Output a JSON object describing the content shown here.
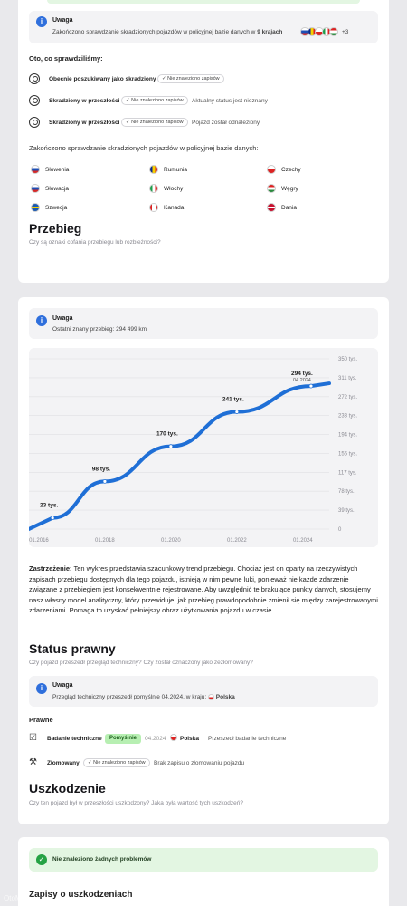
{
  "theft_notice": {
    "title": "Uwaga",
    "text_before": "Zakończono sprawdzanie skradzionych pojazdów w policyjnej bazie danych w",
    "count_label": "9 krajach",
    "more": "+3"
  },
  "checked_heading": "Oto, co sprawdziliśmy:",
  "checks": [
    {
      "icon": "thief-icon",
      "label": "Obecnie poszukiwany jako skradziony",
      "chip": "Nie znaleziono zapisów",
      "note": ""
    },
    {
      "icon": "thief-icon",
      "label": "Skradziony w przeszłości",
      "chip": "Nie znaleziono zapisów",
      "note": "Aktualny status jest nieznany"
    },
    {
      "icon": "thief-icon",
      "label": "Skradziony w przeszłości",
      "chip": "Nie znaleziono zapisów",
      "note": "Pojazd został odnaleziony"
    }
  ],
  "countries_heading": "Zakończono sprawdzanie skradzionych pojazdów w policyjnej bazie danych:",
  "countries": [
    {
      "name": "Słowenia"
    },
    {
      "name": "Rumunia"
    },
    {
      "name": "Czechy"
    },
    {
      "name": "Słowacja"
    },
    {
      "name": "Włochy"
    },
    {
      "name": "Węgry"
    },
    {
      "name": "Szwecja"
    },
    {
      "name": "Kanada"
    },
    {
      "name": "Dania"
    }
  ],
  "mileage": {
    "title": "Przebieg",
    "subtitle": "Czy są oznaki cofania przebiegu lub rozbieżności?",
    "notice_title": "Uwaga",
    "notice_text": "Ostatni znany przebieg: 294 499 km"
  },
  "chart_data": {
    "type": "line",
    "title": "",
    "x": [
      "2016-06",
      "2018-01",
      "2020-01",
      "2022-01",
      "2024-04"
    ],
    "values": [
      23,
      98,
      170,
      241,
      294
    ],
    "point_labels": [
      "23 tys.",
      "98 tys.",
      "170 tys.",
      "241 tys.",
      "294 tys."
    ],
    "last_point_date": "04.2024",
    "x_ticks": [
      "01.2016",
      "01.2018",
      "01.2020",
      "01.2022",
      "01.2024"
    ],
    "y_ticks": [
      "0",
      "39 tys.",
      "78 tys.",
      "117 tys.",
      "156 tys.",
      "194 tys.",
      "233 tys.",
      "272 tys.",
      "311 tys.",
      "350 tys."
    ],
    "ylim": [
      0,
      350
    ],
    "line_color": "#1f6fd6",
    "grid": true
  },
  "disclaimer": {
    "bold": "Zastrzeżenie:",
    "text": "Ten wykres przedstawia szacunkowy trend przebiegu. Chociaż jest on oparty na rzeczywistych zapisach przebiegu dostępnych dla tego pojazdu, istnieją w nim pewne luki, ponieważ nie każde zdarzenie związane z przebiegiem jest konsekwentnie rejestrowane. Aby uwzględnić te brakujące punkty danych, stosujemy nasz własny model analityczny, który przewiduje, jak przebieg prawdopodobnie zmienił się między zarejestrowanymi zdarzeniami. Pomaga to uzyskać pełniejszy obraz użytkowania pojazdu w czasie."
  },
  "legal": {
    "title": "Status prawny",
    "subtitle": "Czy pojazd przeszedł przegląd techniczny? Czy został oznaczony jako zezłomowany?",
    "notice_title": "Uwaga",
    "notice_text": "Przegląd techniczny przeszedł pomyślnie 04.2024, w kraju:",
    "notice_country": "Polska",
    "section_label": "Prawne",
    "rows": [
      {
        "label": "Badanie techniczne",
        "status": "Pomyślnie",
        "date": "04.2024",
        "country": "Polska",
        "note": "Przeszedł badanie techniczne"
      },
      {
        "label": "Złomowany",
        "status": "Nie znaleziono zapisów",
        "note": "Brak zapisu o złomowaniu pojazdu"
      }
    ]
  },
  "damage": {
    "title": "Uszkodzenie",
    "subtitle": "Czy ten pojazd był w przeszłości uszkodzony? Jaka była wartość tych uszkodzeń?",
    "ok_text": "Nie znaleziono żadnych problemów",
    "records_title": "Zapisy o uszkodzeniach"
  },
  "watermark": "OtoMoto"
}
